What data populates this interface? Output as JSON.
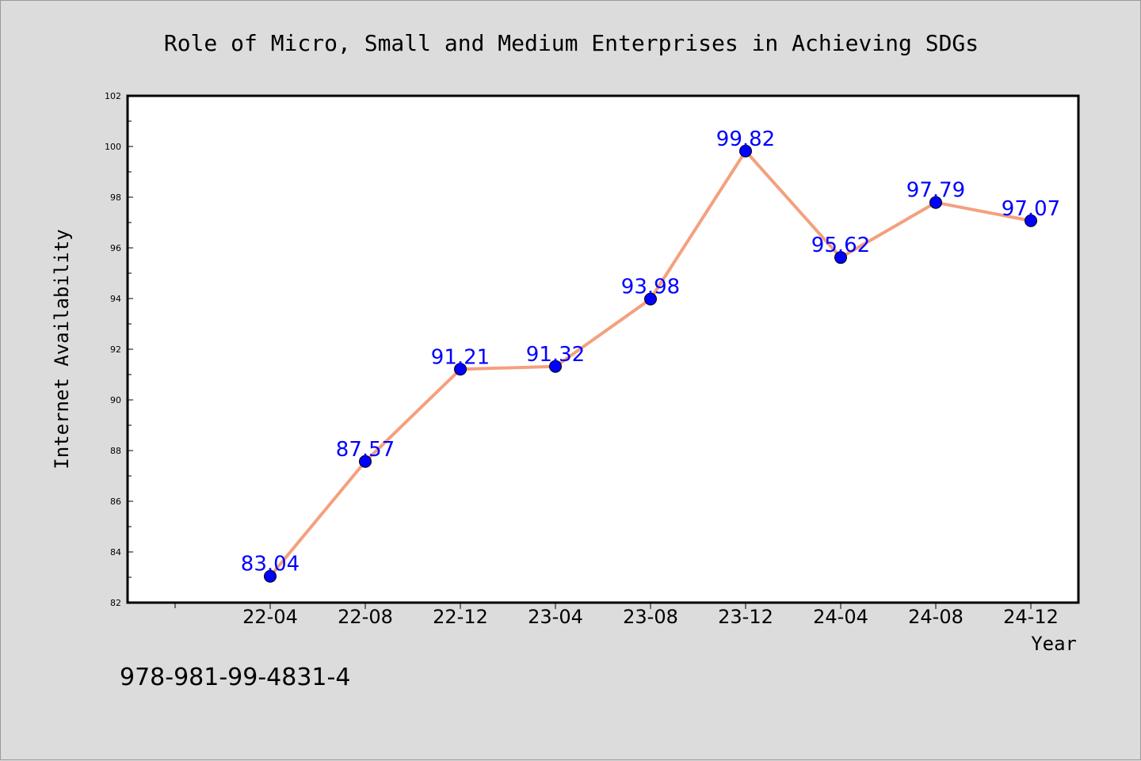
{
  "colors": {
    "background": "#dcdcdc",
    "plot_background": "#ffffff",
    "line": "#f4a07e",
    "marker": "#0000ff",
    "label": "#0000ff"
  },
  "footer_text": "978-981-99-4831-4",
  "chart_data": {
    "type": "line",
    "title": "Role of Micro, Small and Medium Enterprises in Achieving SDGs",
    "xlabel": "Year",
    "ylabel": "Internet Availability",
    "categories": [
      "22-04",
      "22-08",
      "22-12",
      "23-04",
      "23-08",
      "23-12",
      "24-04",
      "24-08",
      "24-12"
    ],
    "series": [
      {
        "values": [
          83.04,
          87.57,
          91.21,
          91.32,
          93.98,
          99.82,
          95.62,
          97.79,
          97.07
        ]
      }
    ],
    "ylim": [
      82,
      102
    ],
    "yticks": [
      "82",
      "84",
      "86",
      "88",
      "90",
      "92",
      "94",
      "96",
      "98",
      "100",
      "102"
    ],
    "grid": false,
    "legend": "none"
  }
}
